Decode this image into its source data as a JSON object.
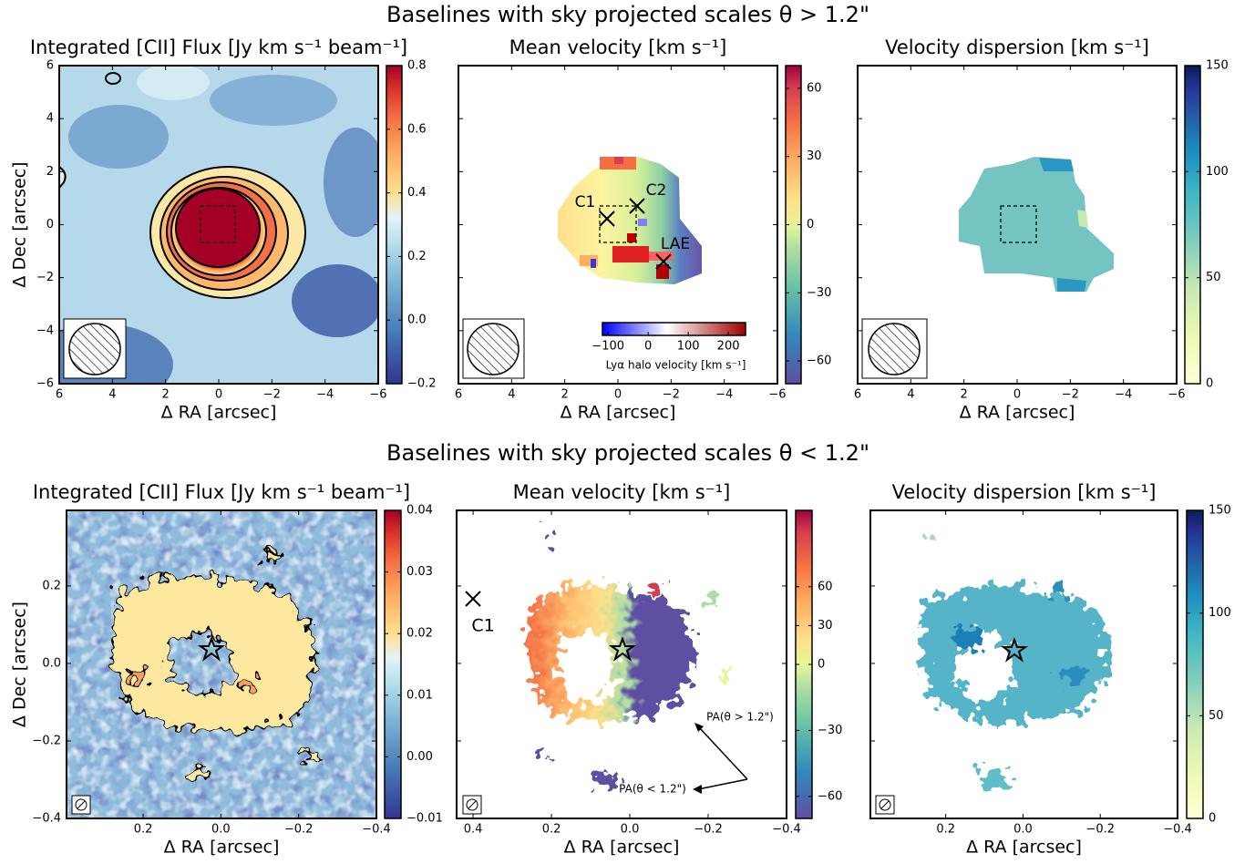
{
  "row_titles": [
    "Baselines with sky projected scales θ > 1.2\"",
    "Baselines with sky projected scales θ < 1.2\""
  ],
  "chart_data": [
    {
      "type": "heatmap",
      "title": "Integrated [CII] Flux [Jy km s⁻¹ beam⁻¹]",
      "xlabel": "Δ RA [arcsec]",
      "ylabel": "Δ Dec [arcsec]",
      "xlim": [
        6,
        -6
      ],
      "ylim": [
        -6,
        6
      ],
      "xticks": [
        6,
        4,
        2,
        0,
        {
          "value": -2,
          "label": "−2"
        },
        {
          "value": -4,
          "label": "−4"
        },
        {
          "value": -6,
          "label": "−6"
        }
      ],
      "yticks": [
        {
          "value": -6,
          "label": "−6"
        },
        {
          "value": -4,
          "label": "−4"
        },
        {
          "value": -2,
          "label": "−2"
        },
        0,
        2,
        4,
        6
      ],
      "ytick_labels": true,
      "cmap": "RdYlBu_r",
      "colorbar": {
        "lim": [
          -0.2,
          0.8
        ],
        "ticks": [
          {
            "value": -0.2,
            "label": "−0.2"
          },
          {
            "value": 0,
            "label": "0.0"
          },
          0.2,
          0.4,
          0.6,
          0.8
        ]
      }
    },
    {
      "type": "heatmap",
      "title": "Mean velocity [km s⁻¹]",
      "xlabel": "Δ RA [arcsec]",
      "xlim": [
        6,
        -6
      ],
      "ylim": [
        -6,
        6
      ],
      "xticks": [
        6,
        4,
        2,
        0,
        {
          "value": -2,
          "label": "−2"
        },
        {
          "value": -4,
          "label": "−4"
        },
        {
          "value": -6,
          "label": "−6"
        }
      ],
      "yticks": [
        -6,
        -4,
        -2,
        0,
        2,
        4,
        6
      ],
      "ytick_labels": false,
      "cmap": "Spectral_r",
      "colorbar": {
        "lim": [
          -70,
          70
        ],
        "ticks": [
          {
            "value": -60,
            "label": "−60"
          },
          {
            "value": -30,
            "label": "−30"
          },
          0,
          30,
          60
        ]
      },
      "annotations": [
        "C1",
        "C2",
        "LAE"
      ],
      "inset_colorbar": {
        "label": "Lyα halo velocity [km s⁻¹]",
        "lim": [
          -114,
          243
        ],
        "ticks": [
          {
            "value": -100,
            "label": "−100"
          },
          0,
          100,
          200
        ],
        "cmap": "bwr"
      }
    },
    {
      "type": "heatmap",
      "title": "Velocity dispersion [km s⁻¹]",
      "xlabel": "Δ RA [arcsec]",
      "xlim": [
        6,
        -6
      ],
      "ylim": [
        -6,
        6
      ],
      "xticks": [
        6,
        4,
        2,
        0,
        {
          "value": -2,
          "label": "−2"
        },
        {
          "value": -4,
          "label": "−4"
        },
        {
          "value": -6,
          "label": "−6"
        }
      ],
      "yticks": [
        -6,
        -4,
        -2,
        0,
        2,
        4,
        6
      ],
      "ytick_labels": false,
      "cmap": "YlGnBu",
      "colorbar": {
        "lim": [
          0,
          150
        ],
        "ticks": [
          0,
          50,
          100,
          150
        ]
      }
    },
    {
      "type": "heatmap",
      "title": "Integrated [CII] Flux [Jy km s⁻¹ beam⁻¹]",
      "xlabel": "Δ RA [arcsec]",
      "ylabel": "Δ Dec [arcsec]",
      "xlim": [
        0.397,
        -0.4
      ],
      "ylim": [
        -0.4,
        0.395
      ],
      "xticks": [
        0.2,
        {
          "value": 0,
          "label": "0.0"
        },
        {
          "value": -0.2,
          "label": "−0.2"
        },
        {
          "value": -0.4,
          "label": "−0.4"
        }
      ],
      "yticks": [
        {
          "value": -0.4,
          "label": "−0.4"
        },
        {
          "value": -0.2,
          "label": "−0.2"
        },
        {
          "value": 0,
          "label": "0.0"
        },
        0.2
      ],
      "ytick_labels": true,
      "cmap": "RdYlBu_r",
      "colorbar": {
        "lim": [
          -0.01,
          0.04
        ],
        "ticks": [
          {
            "value": -0.01,
            "label": "−0.01"
          },
          {
            "value": 0,
            "label": "0.00"
          },
          0.01,
          0.02,
          0.03,
          0.04
        ]
      }
    },
    {
      "type": "heatmap",
      "title": "Mean velocity [km s⁻¹]",
      "xlabel": "Δ RA [arcsec]",
      "xlim": [
        0.442,
        -0.4
      ],
      "ylim": [
        -0.4,
        0.395
      ],
      "xticks": [
        0.4,
        0.2,
        {
          "value": 0,
          "label": "0.0"
        },
        {
          "value": -0.2,
          "label": "−0.2"
        },
        {
          "value": -0.4,
          "label": "−0.4"
        }
      ],
      "yticks": [
        -0.4,
        -0.2,
        0,
        0.2
      ],
      "ytick_labels": false,
      "cmap": "Spectral_r",
      "colorbar": {
        "lim": [
          -70,
          119
        ],
        "norm": "twoslope",
        "vcenter": 0,
        "ticks": [
          {
            "value": -60,
            "label": "−60"
          },
          {
            "value": -30,
            "label": "−30"
          },
          0,
          30,
          60
        ]
      },
      "annotations": [
        "C1",
        "PA(θ > 1.2\")",
        "PA(θ < 1.2\")"
      ]
    },
    {
      "type": "heatmap",
      "title": "Velocity dispersion [km s⁻¹]",
      "xlabel": "Δ RA [arcsec]",
      "xlim": [
        0.395,
        -0.4
      ],
      "ylim": [
        -0.4,
        0.395
      ],
      "xticks": [
        0.2,
        {
          "value": 0,
          "label": "0.0"
        },
        {
          "value": -0.2,
          "label": "−0.2"
        },
        {
          "value": -0.4,
          "label": "−0.4"
        }
      ],
      "yticks": [
        -0.4,
        -0.2,
        0,
        0.2
      ],
      "ytick_labels": false,
      "cmap": "YlGnBu",
      "colorbar": {
        "lim": [
          0,
          150
        ],
        "ticks": [
          0,
          50,
          100,
          150
        ]
      }
    }
  ]
}
